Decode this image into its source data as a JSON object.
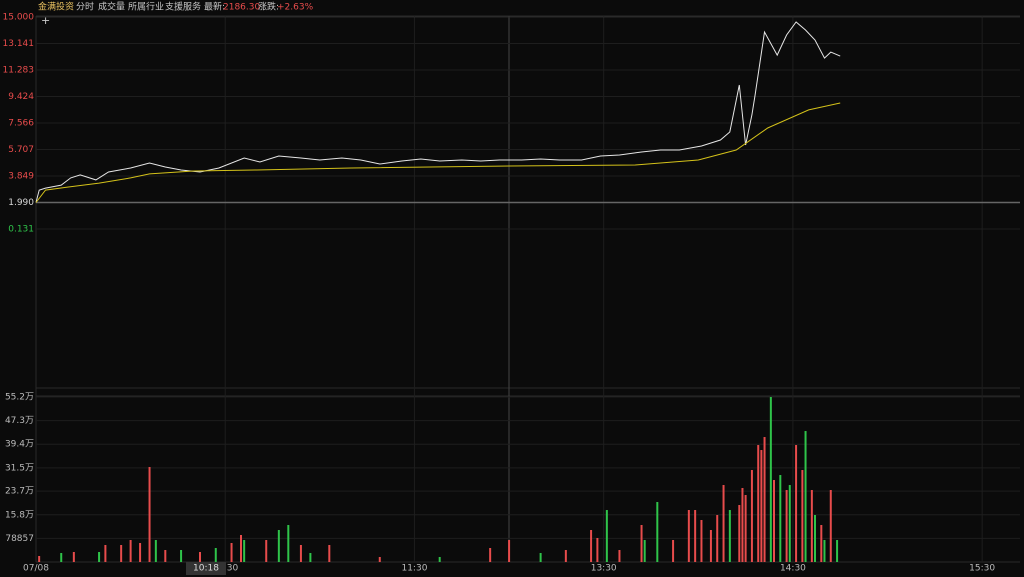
{
  "header": {
    "name": "金满投资",
    "tabs": [
      "分时",
      "成交量",
      "所属行业",
      "支援服务"
    ],
    "latest_label": "最新:",
    "latest": "2186.30",
    "change_label": "涨跌:",
    "change": "+2.63%"
  },
  "cursor_label": "10:18",
  "chart_data": {
    "type": "line",
    "xlim": [
      0,
      312
    ],
    "xticks": [
      {
        "value": 0,
        "label": "07/08"
      },
      {
        "value": 60,
        "label": "10:30"
      },
      {
        "value": 120,
        "label": "11:30"
      },
      {
        "value": 180,
        "label": "13:30"
      },
      {
        "value": 240,
        "label": "14:30"
      },
      {
        "value": 300,
        "label": "15:30"
      }
    ],
    "ylim": [
      -11.026,
      15
    ],
    "yticks": [
      {
        "value": 15,
        "label": "15.000"
      },
      13.141,
      11.283,
      9.424,
      7.566,
      5.707,
      3.849,
      {
        "value": 1.99,
        "label": "1.990"
      },
      0.131
    ],
    "ytick_colors": [
      "#e84c4c",
      "#e84c4c",
      "#e84c4c",
      "#e84c4c",
      "#e84c4c",
      "#e84c4c",
      "#e84c4c",
      "#d8d8d8",
      "#2fc44a"
    ],
    "grid": true,
    "series": [
      {
        "color": "#e6e6e6",
        "x": [
          0,
          1,
          3,
          8,
          11,
          14,
          19,
          23,
          30,
          36,
          41,
          46,
          52,
          58,
          66,
          71,
          77,
          84,
          90,
          97,
          103,
          109,
          116,
          122,
          128,
          135,
          141,
          147,
          154,
          160,
          166,
          173,
          179,
          185,
          192,
          198,
          204,
          211,
          217,
          220,
          223,
          225,
          227,
          228,
          231,
          235,
          238,
          241,
          244,
          247,
          250,
          252,
          255
        ],
        "values": [
          1.99,
          2.86,
          3.0,
          3.21,
          3.71,
          3.92,
          3.57,
          4.13,
          4.41,
          4.76,
          4.48,
          4.27,
          4.13,
          4.41,
          5.11,
          4.83,
          5.25,
          5.11,
          4.97,
          5.11,
          4.97,
          4.69,
          4.9,
          5.04,
          4.9,
          4.97,
          4.9,
          4.97,
          4.97,
          5.04,
          4.97,
          4.97,
          5.25,
          5.32,
          5.53,
          5.67,
          5.67,
          5.95,
          6.37,
          6.93,
          10.23,
          6.02,
          8.13,
          9.53,
          13.95,
          12.33,
          13.74,
          14.65,
          14.09,
          13.39,
          12.12,
          12.54,
          12.26
        ]
      },
      {
        "color": "#d4c21a",
        "x": [
          0,
          3,
          10,
          20,
          30,
          36,
          50,
          70,
          100,
          150,
          190,
          210,
          222,
          232,
          245,
          255
        ],
        "values": [
          1.99,
          2.86,
          3.07,
          3.35,
          3.71,
          3.99,
          4.2,
          4.27,
          4.41,
          4.55,
          4.62,
          4.97,
          5.67,
          7.21,
          8.48,
          8.97
        ]
      }
    ],
    "volume": {
      "ylim": [
        0,
        552000
      ],
      "yticks": [
        {
          "value": 552000,
          "label": "55.2万"
        },
        {
          "value": 473000,
          "label": "47.3万"
        },
        {
          "value": 394000,
          "label": "39.4万"
        },
        {
          "value": 315000,
          "label": "31.5万"
        },
        {
          "value": 237000,
          "label": "23.7万"
        },
        {
          "value": 158000,
          "label": "15.8万"
        },
        78857
      ],
      "x": [
        1,
        8,
        12,
        20,
        22,
        27,
        30,
        33,
        36,
        38,
        41,
        46,
        52,
        57,
        62,
        65,
        66,
        73,
        77,
        80,
        84,
        87,
        93,
        109,
        128,
        144,
        150,
        160,
        168,
        176,
        178,
        181,
        185,
        192,
        193,
        197,
        202,
        207,
        209,
        211,
        214,
        216,
        218,
        220,
        223,
        224,
        225,
        227,
        229,
        230,
        231,
        233,
        234,
        236,
        238,
        239,
        241,
        243,
        244,
        246,
        247,
        249,
        250,
        252,
        254
      ],
      "values": [
        20070,
        30105,
        33450,
        33450,
        56865,
        56865,
        73590,
        63555,
        317775,
        73590,
        40140,
        40140,
        33450,
        46830,
        63555,
        90315,
        73590,
        73590,
        107040,
        123765,
        56865,
        30105,
        56865,
        16725,
        16725,
        46830,
        73590,
        30105,
        40140,
        107040,
        80280,
        173940,
        40140,
        123765,
        73590,
        200700,
        73590,
        173940,
        173940,
        140490,
        107040,
        157215,
        257565,
        173940,
        190665,
        247530,
        224115,
        307740,
        391365,
        374640,
        418125,
        552000,
        274290,
        291015,
        240840,
        257565,
        391365,
        307740,
        438195,
        240840,
        157215,
        123765,
        73590,
        240840,
        73590
      ],
      "colors": [
        "#e84c4c",
        "#2fc44a",
        "#e84c4c",
        "#2fc44a",
        "#e84c4c",
        "#e84c4c",
        "#e84c4c",
        "#e84c4c",
        "#e84c4c",
        "#2fc44a",
        "#e84c4c",
        "#2fc44a",
        "#e84c4c",
        "#2fc44a",
        "#e84c4c",
        "#e84c4c",
        "#2fc44a",
        "#e84c4c",
        "#2fc44a",
        "#2fc44a",
        "#e84c4c",
        "#2fc44a",
        "#e84c4c",
        "#e84c4c",
        "#2fc44a",
        "#e84c4c",
        "#e84c4c",
        "#2fc44a",
        "#e84c4c",
        "#e84c4c",
        "#e84c4c",
        "#2fc44a",
        "#e84c4c",
        "#e84c4c",
        "#2fc44a",
        "#2fc44a",
        "#e84c4c",
        "#e84c4c",
        "#e84c4c",
        "#e84c4c",
        "#e84c4c",
        "#e84c4c",
        "#e84c4c",
        "#2fc44a",
        "#e84c4c",
        "#e84c4c",
        "#e84c4c",
        "#e84c4c",
        "#e84c4c",
        "#e84c4c",
        "#e84c4c",
        "#2fc44a",
        "#e84c4c",
        "#2fc44a",
        "#e84c4c",
        "#2fc44a",
        "#e84c4c",
        "#e84c4c",
        "#2fc44a",
        "#e84c4c",
        "#2fc44a",
        "#e84c4c",
        "#2fc44a",
        "#e84c4c",
        "#2fc44a"
      ]
    }
  }
}
